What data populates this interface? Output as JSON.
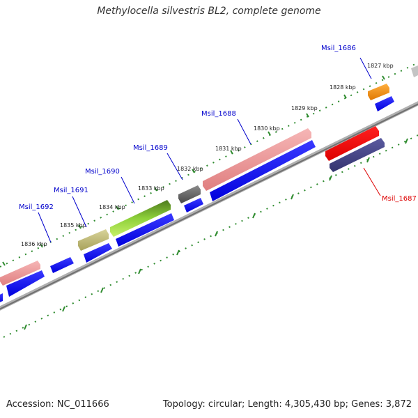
{
  "title": "Methylocella silvestris BL2, complete genome",
  "footer": {
    "accession": "Accession: NC_011666",
    "summary": "Topology: circular; Length: 4,305,430 bp; Genes: 3,872"
  },
  "scale_labels": [
    "1827 kbp",
    "1828 kbp",
    "1829 kbp",
    "1830 kbp",
    "1831 kbp",
    "1832 kbp",
    "1833 kbp",
    "1834 kbp",
    "1835 kbp",
    "1836 kbp"
  ],
  "gene_labels": [
    "Msil_1686",
    "Msil_1687",
    "Msil_1688",
    "Msil_1689",
    "Msil_1690",
    "Msil_1691",
    "Msil_1692"
  ],
  "colors": {
    "backbone": "#8a8a8a",
    "scale_ticks": "#2e8b2e",
    "cds": "#0000ee",
    "label_blue": "#0000cc",
    "label_red": "#dd0000"
  }
}
